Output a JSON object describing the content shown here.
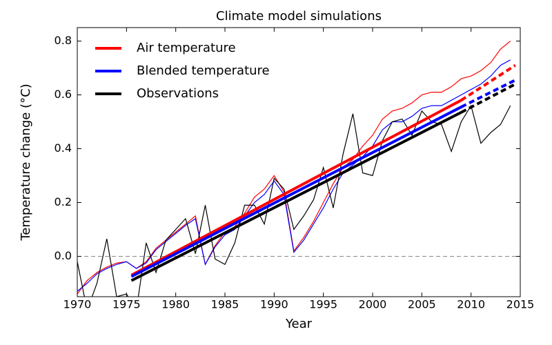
{
  "chart_data": {
    "type": "line",
    "title": "Climate model simulations",
    "x_label": "Year",
    "y_label": "Temperature change (°C)",
    "x": [
      1970,
      1971,
      1972,
      1973,
      1974,
      1975,
      1976,
      1977,
      1978,
      1979,
      1980,
      1981,
      1982,
      1983,
      1984,
      1985,
      1986,
      1987,
      1988,
      1989,
      1990,
      1991,
      1992,
      1993,
      1994,
      1995,
      1996,
      1997,
      1998,
      1999,
      2000,
      2001,
      2002,
      2003,
      2004,
      2005,
      2006,
      2007,
      2008,
      2009,
      2010,
      2011,
      2012,
      2013,
      2014
    ],
    "trend_x": [
      1975.5,
      2009,
      2014.5
    ],
    "series": [
      {
        "name": "Air temperature",
        "color": "#ff0000",
        "values": [
          -0.14,
          -0.09,
          -0.06,
          -0.04,
          -0.025,
          -0.02,
          -0.045,
          -0.02,
          0.03,
          0.06,
          0.09,
          0.12,
          0.15,
          -0.03,
          0.04,
          0.09,
          0.11,
          0.16,
          0.22,
          0.25,
          0.3,
          0.24,
          0.02,
          0.07,
          0.13,
          0.2,
          0.27,
          0.33,
          0.36,
          0.41,
          0.45,
          0.51,
          0.54,
          0.55,
          0.57,
          0.6,
          0.61,
          0.61,
          0.63,
          0.66,
          0.67,
          0.69,
          0.72,
          0.77,
          0.8
        ],
        "trend_values": [
          -0.07,
          0.58,
          0.71
        ]
      },
      {
        "name": "Blended temperature",
        "color": "#0000ff",
        "values": [
          -0.13,
          -0.1,
          -0.065,
          -0.045,
          -0.03,
          -0.02,
          -0.045,
          -0.025,
          0.025,
          0.055,
          0.085,
          0.115,
          0.14,
          -0.03,
          0.035,
          0.08,
          0.1,
          0.15,
          0.2,
          0.23,
          0.28,
          0.23,
          0.015,
          0.06,
          0.12,
          0.18,
          0.25,
          0.31,
          0.34,
          0.37,
          0.41,
          0.47,
          0.5,
          0.5,
          0.52,
          0.55,
          0.56,
          0.56,
          0.58,
          0.6,
          0.62,
          0.64,
          0.67,
          0.71,
          0.73
        ],
        "trend_values": [
          -0.075,
          0.555,
          0.655
        ]
      },
      {
        "name": "Observations",
        "color": "#000000",
        "values": [
          -0.02,
          -0.2,
          -0.1,
          0.065,
          -0.15,
          -0.14,
          -0.2,
          0.05,
          -0.06,
          0.06,
          0.1,
          0.14,
          0.01,
          0.19,
          -0.01,
          -0.03,
          0.05,
          0.19,
          0.19,
          0.12,
          0.29,
          0.25,
          0.1,
          0.15,
          0.21,
          0.33,
          0.18,
          0.38,
          0.53,
          0.31,
          0.3,
          0.43,
          0.5,
          0.51,
          0.45,
          0.54,
          0.5,
          0.49,
          0.39,
          0.5,
          0.56,
          0.42,
          0.46,
          0.49,
          0.56
        ],
        "trend_values": [
          -0.09,
          0.535,
          0.64
        ]
      }
    ],
    "xlim": [
      1970,
      2015
    ],
    "xticks": [
      1970,
      1975,
      1980,
      1985,
      1990,
      1995,
      2000,
      2005,
      2010,
      2015
    ],
    "ylim": [
      -0.15,
      0.85
    ],
    "yticks": [
      {
        "value": 0,
        "label": "0.0"
      },
      0.2,
      0.4,
      0.6,
      0.8
    ],
    "zero_line": true,
    "legend": "upper left"
  }
}
